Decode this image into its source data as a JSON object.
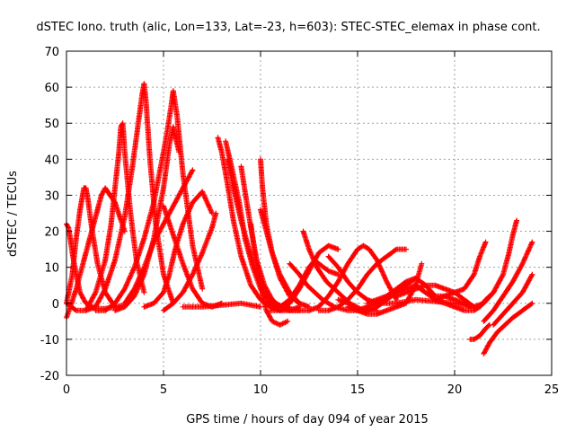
{
  "chart_data": {
    "type": "scatter",
    "title": "dSTEC Iono. truth (alic, Lon=133, Lat=-23, h=603): STEC-STEC_elemax in phase cont.",
    "xlabel": "GPS time / hours of day 094 of year 2015",
    "ylabel": "dSTEC  / TECUs",
    "xlim": [
      0,
      25
    ],
    "ylim": [
      -20,
      70
    ],
    "xticks": [
      0,
      5,
      10,
      15,
      20,
      25
    ],
    "yticks": [
      -20,
      -10,
      0,
      10,
      20,
      30,
      40,
      50,
      60,
      70
    ],
    "grid": true,
    "marker": "+",
    "color": "#ff0000",
    "series": [
      {
        "x": [
          0.0,
          0.1,
          0.2,
          0.3,
          0.5,
          0.7,
          1.0,
          1.5,
          2.0,
          2.5,
          3.0
        ],
        "values": [
          22,
          21,
          18,
          14,
          8,
          3,
          0,
          -1.5,
          -1.5,
          -1,
          -0.5
        ]
      },
      {
        "x": [
          0.0,
          0.3,
          0.5,
          0.7,
          0.9,
          1.0,
          1.1,
          1.3,
          1.6,
          2.0,
          2.5
        ],
        "values": [
          0,
          8,
          18,
          26,
          32,
          32,
          29,
          21,
          11,
          3,
          -1
        ]
      },
      {
        "x": [
          0.0,
          0.2,
          0.5,
          0.8,
          1.0,
          1.2,
          1.4,
          1.6,
          1.8,
          2.0,
          2.5,
          3.0
        ],
        "values": [
          -4,
          -1,
          4,
          10,
          14,
          18,
          22,
          26,
          30,
          32,
          28,
          20
        ]
      },
      {
        "x": [
          0.0,
          0.5,
          1.0,
          1.5,
          2.0,
          2.3,
          2.5,
          2.7,
          2.8,
          2.9,
          3.0,
          3.3,
          3.6,
          4.0
        ],
        "values": [
          0,
          -2,
          -2,
          3,
          12,
          22,
          32,
          42,
          49,
          50,
          42,
          25,
          12,
          3
        ]
      },
      {
        "x": [
          1.0,
          1.5,
          2.0,
          2.5,
          3.0,
          3.4,
          3.7,
          3.9,
          4.0,
          4.1,
          4.3,
          4.6,
          5.0,
          5.5
        ],
        "values": [
          -2,
          -1,
          4,
          12,
          24,
          38,
          50,
          58,
          61,
          56,
          40,
          22,
          8,
          0
        ]
      },
      {
        "x": [
          1.5,
          2.0,
          2.5,
          3.0,
          3.5,
          4.0,
          4.5,
          5.0,
          5.2,
          5.4,
          5.5,
          5.7,
          6.0,
          6.5,
          7.0
        ],
        "values": [
          -2,
          -2,
          0,
          4,
          10,
          18,
          28,
          42,
          48,
          55,
          59,
          52,
          36,
          16,
          4
        ]
      },
      {
        "x": [
          2.5,
          3.0,
          3.5,
          4.0,
          4.5,
          5.0,
          5.3,
          5.5,
          5.8
        ],
        "values": [
          -2,
          -1,
          2,
          8,
          18,
          32,
          44,
          49,
          42
        ]
      },
      {
        "x": [
          3.0,
          3.5,
          4.0,
          4.5,
          5.0,
          5.5,
          6.0,
          6.3,
          6.5
        ],
        "values": [
          0,
          4,
          10,
          17,
          22,
          27,
          32,
          35,
          37
        ]
      },
      {
        "x": [
          4.0,
          4.5,
          5.0,
          5.3,
          5.6,
          6.0,
          6.5,
          7.0,
          7.5
        ],
        "values": [
          -1,
          0,
          3,
          8,
          15,
          22,
          28,
          31,
          25
        ]
      },
      {
        "x": [
          5.0,
          5.5,
          6.0,
          6.5,
          7.0,
          7.5,
          7.7
        ],
        "values": [
          -2,
          0,
          3,
          8,
          14,
          21,
          25
        ]
      },
      {
        "x": [
          5.0,
          5.5,
          6.0,
          6.5,
          7.0,
          7.5,
          8.0
        ],
        "values": [
          27,
          19,
          11,
          4,
          0,
          -1,
          0
        ]
      },
      {
        "x": [
          6.0,
          7.0,
          8.0,
          9.0,
          9.5,
          10.0
        ],
        "values": [
          -1,
          -1,
          -0.5,
          0,
          -0.5,
          -1
        ]
      },
      {
        "x": [
          7.8,
          8.0,
          8.3,
          8.6,
          9.0,
          9.5,
          10.0,
          10.5,
          11.0,
          11.5
        ],
        "values": [
          46,
          42,
          33,
          23,
          13,
          5,
          1,
          -1,
          -2,
          -1
        ]
      },
      {
        "x": [
          8.2,
          8.5,
          8.9,
          9.2,
          9.6,
          10.0,
          10.5,
          11.0,
          11.5,
          12.0
        ],
        "values": [
          45,
          38,
          28,
          18,
          10,
          4,
          0,
          -2,
          -2,
          -1
        ]
      },
      {
        "x": [
          8.3,
          8.6,
          9.0,
          9.4,
          9.8,
          10.2,
          10.8,
          11.5,
          12.5
        ],
        "values": [
          40,
          32,
          23,
          15,
          8,
          3,
          0,
          -2,
          -2
        ]
      },
      {
        "x": [
          9.0,
          9.2,
          9.5,
          9.8,
          10.2,
          10.6,
          11.0,
          11.5,
          12.0
        ],
        "values": [
          38,
          31,
          21,
          12,
          5,
          1,
          -1,
          -2,
          -2
        ]
      },
      {
        "x": [
          9.5,
          9.7,
          10.0,
          10.3,
          10.6,
          11.0,
          11.4
        ],
        "values": [
          22,
          14,
          5,
          -2,
          -5,
          -6,
          -5
        ]
      },
      {
        "x": [
          10.0,
          10.1,
          10.3,
          10.6,
          11.0,
          11.5,
          12.0
        ],
        "values": [
          40,
          32,
          22,
          14,
          7,
          2,
          0
        ]
      },
      {
        "x": [
          10.0,
          10.3,
          10.6,
          11.0,
          11.5,
          12.0,
          12.5
        ],
        "values": [
          26,
          20,
          14,
          8,
          3,
          0,
          -1
        ]
      },
      {
        "x": [
          10.5,
          11.0,
          11.5,
          12.0,
          12.5,
          13.0,
          13.5,
          14.0
        ],
        "values": [
          -2,
          -2,
          0,
          4,
          9,
          14,
          16,
          15
        ]
      },
      {
        "x": [
          11.0,
          11.5,
          12.0,
          12.5,
          12.8,
          13.0,
          13.5,
          14.0
        ],
        "values": [
          -1,
          1,
          5,
          10,
          12,
          11,
          9,
          8
        ]
      },
      {
        "x": [
          11.5,
          12.0,
          12.4,
          12.8,
          13.2,
          13.8,
          14.5,
          15.5
        ],
        "values": [
          11,
          8,
          5,
          3,
          1,
          -1,
          -2,
          -2
        ]
      },
      {
        "x": [
          12.2,
          12.5,
          12.9,
          13.4,
          14.0,
          14.6,
          15.3,
          16.0
        ],
        "values": [
          20,
          15,
          10,
          6,
          3,
          0,
          -2,
          -2
        ]
      },
      {
        "x": [
          12.5,
          13.0,
          13.5,
          14.0,
          14.5,
          15.0,
          15.3,
          15.6,
          16.0,
          16.5,
          17.0
        ],
        "values": [
          -2,
          -1,
          2,
          6,
          11,
          15,
          16,
          15,
          12,
          6,
          1
        ]
      },
      {
        "x": [
          13.0,
          13.5,
          14.0,
          14.5,
          15.0,
          15.5,
          16.0,
          16.5,
          17.0,
          17.5
        ],
        "values": [
          -2,
          -2,
          -1,
          1,
          4,
          8,
          11,
          13,
          15,
          15
        ]
      },
      {
        "x": [
          13.5,
          14.0,
          14.5,
          15.0,
          15.5,
          16.0
        ],
        "values": [
          13,
          10,
          6,
          3,
          1,
          0
        ]
      },
      {
        "x": [
          14.0,
          14.5,
          15.0,
          15.5,
          16.0,
          16.5,
          17.0,
          17.5,
          18.0,
          18.3
        ],
        "values": [
          1,
          0,
          -2,
          -3,
          -3,
          -2,
          -1,
          0,
          5,
          11
        ]
      },
      {
        "x": [
          14.5,
          15.0,
          15.5,
          16.0,
          16.5,
          17.0,
          17.5,
          18.0
        ],
        "values": [
          -1,
          -2,
          -2,
          -1,
          1,
          3,
          5,
          7
        ]
      },
      {
        "x": [
          15.0,
          15.5,
          16.0,
          16.5,
          17.0,
          17.5,
          18.0,
          18.5,
          19.0
        ],
        "values": [
          -2,
          -1,
          0,
          2,
          4,
          6,
          7,
          5,
          2
        ]
      },
      {
        "x": [
          15.5,
          16.0,
          16.5,
          17.0,
          17.5,
          18.0,
          18.5,
          19.0,
          19.5,
          20.0
        ],
        "values": [
          0,
          1,
          2,
          3,
          4,
          5,
          3,
          1,
          0,
          -1
        ]
      },
      {
        "x": [
          16.0,
          17.0,
          18.0,
          19.0,
          20.0,
          21.0
        ],
        "values": [
          0,
          0,
          1,
          0.5,
          0,
          -1
        ]
      },
      {
        "x": [
          17.0,
          17.5,
          18.0,
          18.5,
          19.0,
          19.5,
          20.0,
          20.5,
          21.0
        ],
        "values": [
          2,
          3,
          4,
          5,
          5,
          4,
          3,
          1,
          -1
        ]
      },
      {
        "x": [
          18.0,
          18.5,
          19.0,
          19.5,
          20.0,
          20.5,
          20.8
        ],
        "values": [
          5,
          3,
          2,
          2,
          1,
          0,
          -1
        ]
      },
      {
        "x": [
          19.0,
          19.5,
          20.0,
          20.5,
          21.0,
          21.3,
          21.6
        ],
        "values": [
          1,
          2,
          3,
          4,
          8,
          13,
          17
        ]
      },
      {
        "x": [
          20.0,
          20.5,
          21.0,
          21.3,
          21.6,
          22.0
        ],
        "values": [
          -1,
          -2,
          -2,
          -1,
          1,
          3
        ]
      },
      {
        "x": [
          20.8,
          21.0,
          21.3,
          21.6,
          21.8
        ],
        "values": [
          -10,
          -10,
          -9,
          -7,
          -6
        ]
      },
      {
        "x": [
          20.5,
          21.0,
          21.5,
          22.0,
          22.5,
          22.8,
          23.0,
          23.2
        ],
        "values": [
          0,
          -1,
          0,
          3,
          8,
          14,
          19,
          23
        ]
      },
      {
        "x": [
          21.5,
          22.0,
          22.5,
          23.0,
          23.5,
          24.0
        ],
        "values": [
          -5,
          -2,
          2,
          6,
          11,
          17
        ]
      },
      {
        "x": [
          21.5,
          21.8,
          22.2,
          22.6,
          23.0,
          23.5,
          24.0
        ],
        "values": [
          -14,
          -11,
          -8,
          -6,
          -4,
          -2,
          0
        ]
      },
      {
        "x": [
          22.0,
          22.5,
          23.0,
          23.5,
          24.0
        ],
        "values": [
          -6,
          -3,
          0,
          3,
          8
        ]
      }
    ]
  }
}
